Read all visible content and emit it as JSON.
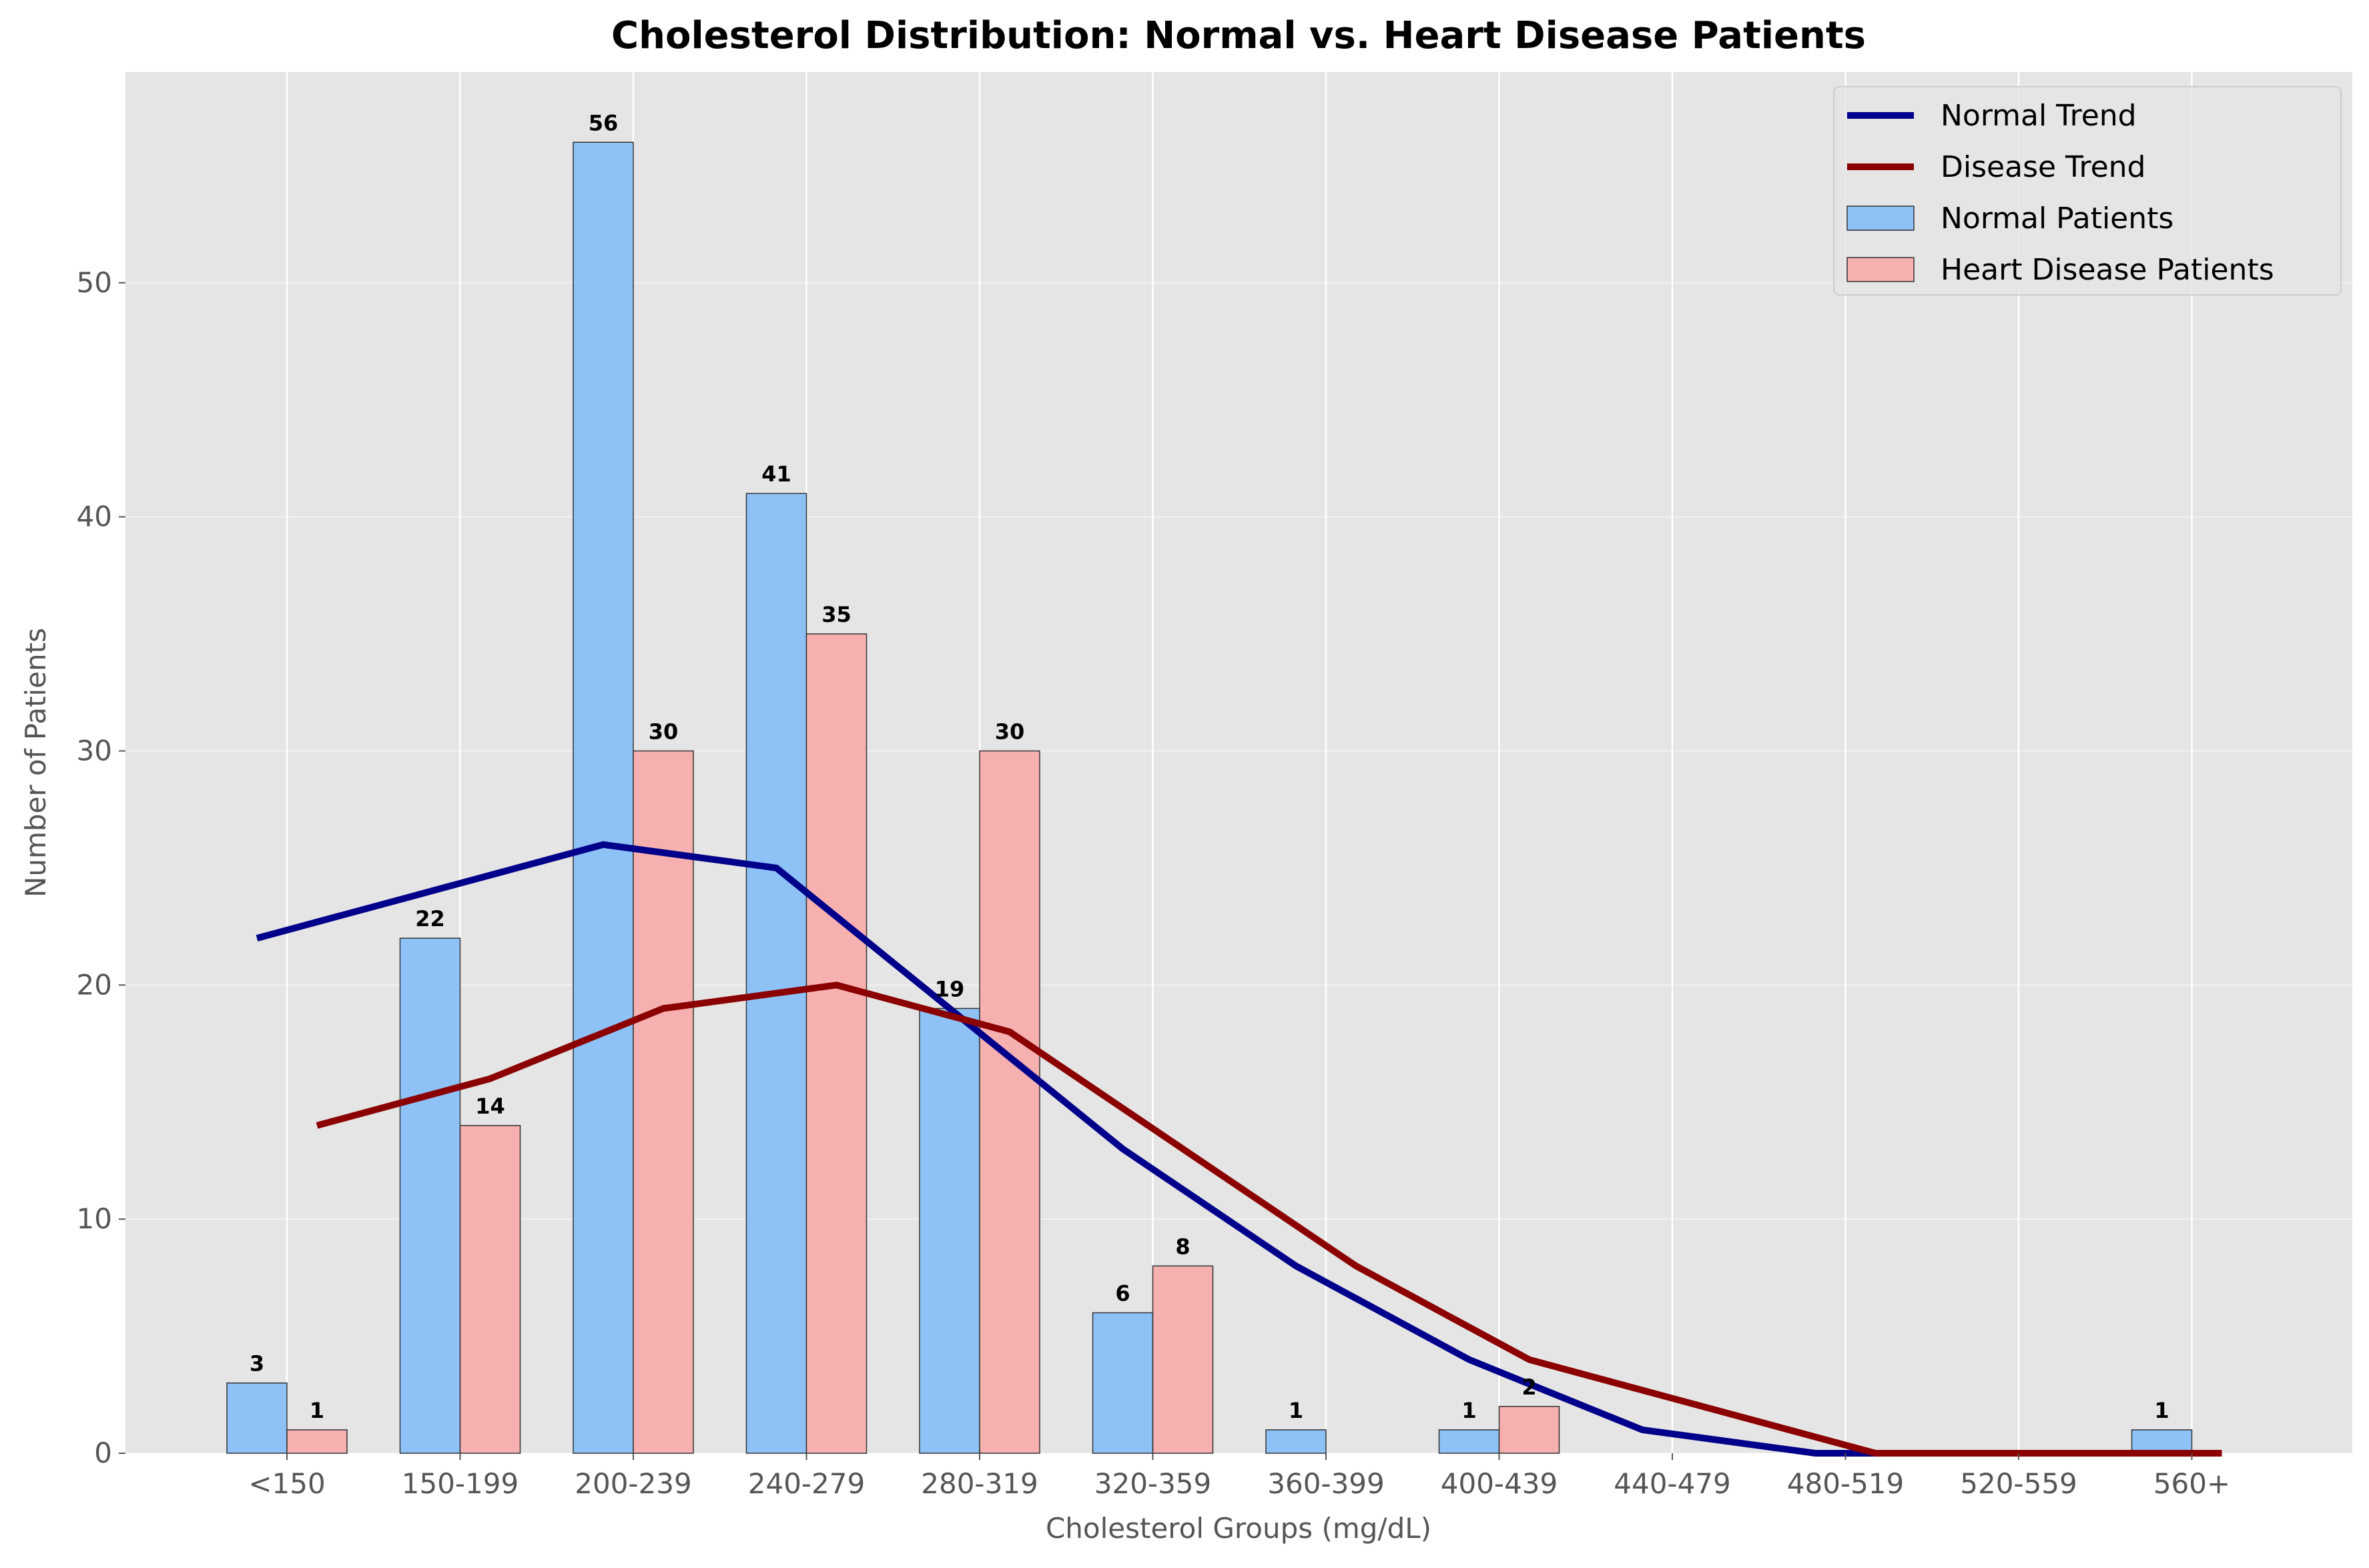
{
  "chart_data": {
    "type": "bar",
    "title": "Cholesterol Distribution: Normal vs. Heart Disease Patients",
    "xlabel": "Cholesterol Groups (mg/dL)",
    "ylabel": "Number of Patients",
    "ylim": [
      0,
      59
    ],
    "yticks": [
      0,
      10,
      20,
      30,
      40,
      50
    ],
    "grid": true,
    "legend_position": "top-right",
    "categories": [
      "<150",
      "150-199",
      "200-239",
      "240-279",
      "280-319",
      "320-359",
      "360-399",
      "400-439",
      "440-479",
      "480-519",
      "520-559",
      "560+"
    ],
    "bar_series": [
      {
        "name": "Normal Patients",
        "color": "#8ec1f6",
        "values": [
          3,
          22,
          56,
          41,
          19,
          6,
          1,
          1,
          0,
          0,
          0,
          1
        ]
      },
      {
        "name": "Heart Disease Patients",
        "color": "#f6b0b0",
        "values": [
          1,
          14,
          30,
          35,
          30,
          8,
          0,
          2,
          0,
          0,
          0,
          0
        ]
      }
    ],
    "line_series": [
      {
        "name": "Normal Trend",
        "color": "#00008b",
        "values": [
          22,
          24,
          26,
          25,
          19,
          13,
          8,
          4,
          1,
          0,
          0,
          0
        ]
      },
      {
        "name": "Disease Trend",
        "color": "#8b0000",
        "values": [
          14,
          16,
          19,
          20,
          18,
          13,
          8,
          4,
          2,
          0,
          0,
          0
        ]
      }
    ],
    "data_labels": {
      "Normal Patients": [
        "3",
        "22",
        "56",
        "41",
        "19",
        "6",
        "1",
        "1",
        "",
        "",
        "",
        "1"
      ],
      "Heart Disease Patients": [
        "1",
        "14",
        "30",
        "35",
        "30",
        "8",
        "",
        "2",
        "",
        "",
        "",
        ""
      ]
    },
    "legend_order": [
      "Normal Trend",
      "Disease Trend",
      "Normal Patients",
      "Heart Disease Patients"
    ]
  }
}
